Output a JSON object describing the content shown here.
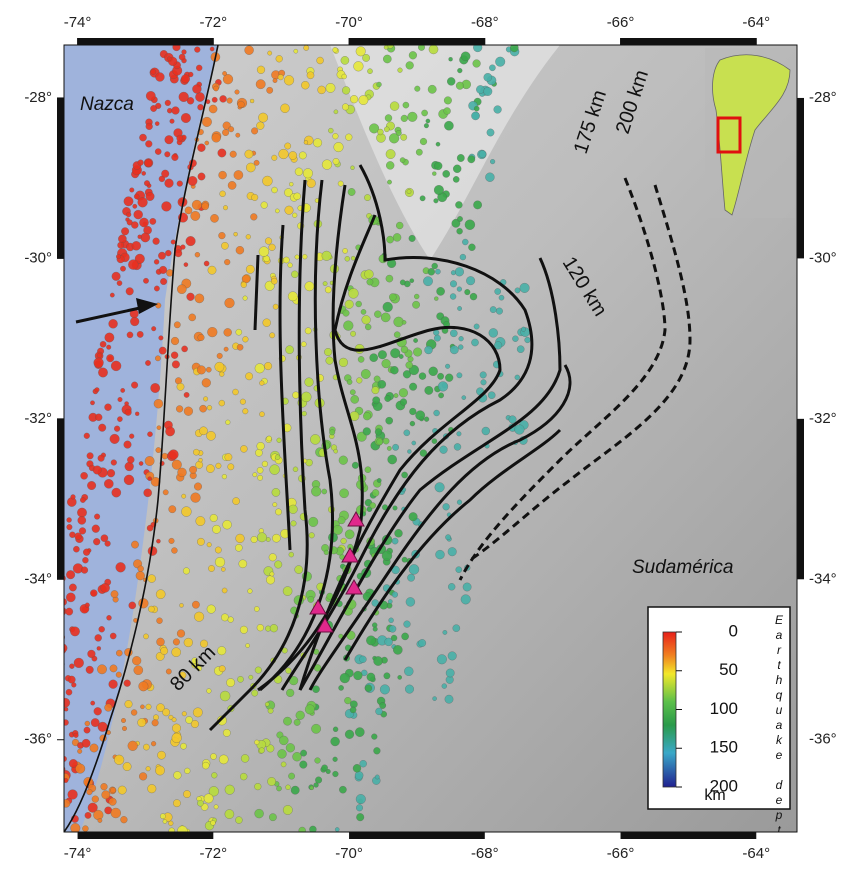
{
  "map": {
    "lon_ticks": [
      {
        "value": -74,
        "label": "-74°"
      },
      {
        "value": -72,
        "label": "-72°"
      },
      {
        "value": -70,
        "label": "-70°"
      },
      {
        "value": -68,
        "label": "-68°"
      },
      {
        "value": -66,
        "label": "-66°"
      },
      {
        "value": -64,
        "label": "-64°"
      }
    ],
    "lat_ticks": [
      {
        "value": -28,
        "label": "-28°"
      },
      {
        "value": -30,
        "label": "-30°"
      },
      {
        "value": -32,
        "label": "-32°"
      },
      {
        "value": -34,
        "label": "-34°"
      },
      {
        "value": -36,
        "label": "-36°"
      }
    ],
    "xlim": [
      -74.2,
      -63.4
    ],
    "ylim": [
      -37.15,
      -27.34
    ],
    "labels": {
      "ocean": "Nazca",
      "continent": "Sudamérica"
    },
    "contour_labels": [
      "80 km",
      "120 km",
      "175 km",
      "200 km"
    ],
    "colorbar": {
      "lim": [
        0,
        200
      ],
      "ticks": [
        0,
        50,
        100,
        150,
        200
      ],
      "unit": "km",
      "label": "Earthquake depth"
    }
  }
}
